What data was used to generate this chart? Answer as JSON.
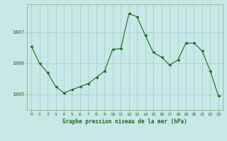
{
  "x": [
    0,
    1,
    2,
    3,
    4,
    5,
    6,
    7,
    8,
    9,
    10,
    11,
    12,
    13,
    14,
    15,
    16,
    17,
    18,
    19,
    20,
    21,
    22,
    23
  ],
  "y": [
    1006.55,
    1006.0,
    1005.7,
    1005.25,
    1005.05,
    1005.15,
    1005.25,
    1005.35,
    1005.55,
    1005.75,
    1006.45,
    1006.47,
    1007.6,
    1007.5,
    1006.9,
    1006.35,
    1006.2,
    1005.95,
    1006.1,
    1006.65,
    1006.65,
    1006.4,
    1005.75,
    1004.95
  ],
  "line_color": "#1a6b1a",
  "marker_color": "#1a6b1a",
  "bg_color": "#c8e8e8",
  "grid_color": "#a0c8c8",
  "axis_label_color": "#1a6b1a",
  "xlabel": "Graphe pression niveau de la mer (hPa)",
  "yticks": [
    1005,
    1006,
    1007
  ],
  "ylim": [
    1004.5,
    1007.9
  ],
  "xlim": [
    -0.5,
    23.5
  ]
}
